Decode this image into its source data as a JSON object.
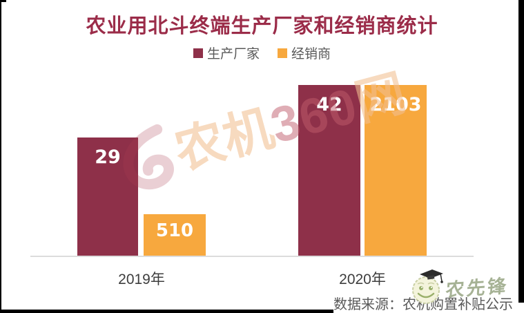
{
  "title": "农业用北斗终端生产厂家和经销商统计",
  "legend": [
    {
      "label": "生产厂家",
      "color": "#8e3049"
    },
    {
      "label": "经销商",
      "color": "#f7a83e"
    }
  ],
  "chart_data": {
    "type": "bar",
    "title": "农业用北斗终端生产厂家和经销商统计",
    "categories": [
      "2019年",
      "2020年"
    ],
    "series": [
      {
        "name": "生产厂家",
        "color": "#8e3049",
        "values": [
          29,
          42
        ]
      },
      {
        "name": "经销商",
        "color": "#f7a83e",
        "values": [
          510,
          2103
        ]
      }
    ],
    "xlabel": "",
    "ylabel": "",
    "grid": false,
    "legend_position": "top-center",
    "dual_axis": true,
    "axes_hidden": true,
    "data_labels": [
      "29",
      "510",
      "42",
      "2103"
    ]
  },
  "source_text": "数据来源：农机购置补贴公示",
  "watermark": {
    "swirl_icon": "swirl-logo-icon",
    "part1": "农机",
    "part2": "360",
    "part3": "网"
  },
  "logo": {
    "icon": "graduate-smiley-icon",
    "text": "农先锋"
  }
}
